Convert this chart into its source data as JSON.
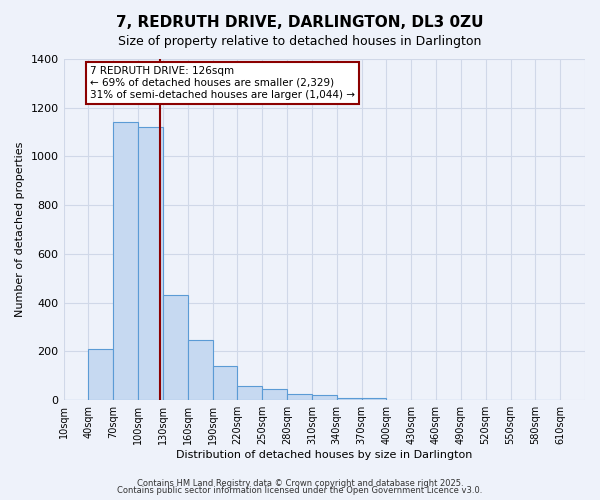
{
  "title": "7, REDRUTH DRIVE, DARLINGTON, DL3 0ZU",
  "subtitle": "Size of property relative to detached houses in Darlington",
  "xlabel": "Distribution of detached houses by size in Darlington",
  "ylabel": "Number of detached properties",
  "bar_values": [
    0,
    210,
    1140,
    1120,
    430,
    245,
    140,
    60,
    45,
    25,
    20,
    10,
    10,
    0,
    0,
    0,
    0,
    0,
    0,
    0
  ],
  "bin_labels": [
    "10sqm",
    "40sqm",
    "70sqm",
    "100sqm",
    "130sqm",
    "160sqm",
    "190sqm",
    "220sqm",
    "250sqm",
    "280sqm",
    "310sqm",
    "340sqm",
    "370sqm",
    "400sqm",
    "430sqm",
    "460sqm",
    "490sqm",
    "520sqm",
    "550sqm",
    "580sqm",
    "610sqm"
  ],
  "bin_edges": [
    10,
    40,
    70,
    100,
    130,
    160,
    190,
    220,
    250,
    280,
    310,
    340,
    370,
    400,
    430,
    460,
    490,
    520,
    550,
    580,
    610
  ],
  "bar_color": "#c6d9f1",
  "bar_edge_color": "#5b9bd5",
  "ylim": [
    0,
    1400
  ],
  "yticks": [
    0,
    200,
    400,
    600,
    800,
    1000,
    1200,
    1400
  ],
  "vline_x": 126,
  "vline_color": "#8b0000",
  "annotation_title": "7 REDRUTH DRIVE: 126sqm",
  "annotation_line1": "← 69% of detached houses are smaller (2,329)",
  "annotation_line2": "31% of semi-detached houses are larger (1,044) →",
  "annotation_box_color": "#ffffff",
  "annotation_box_edge_color": "#8b0000",
  "grid_color": "#d0d8e8",
  "bg_color": "#eef2fa",
  "footnote1": "Contains HM Land Registry data © Crown copyright and database right 2025.",
  "footnote2": "Contains public sector information licensed under the Open Government Licence v3.0."
}
